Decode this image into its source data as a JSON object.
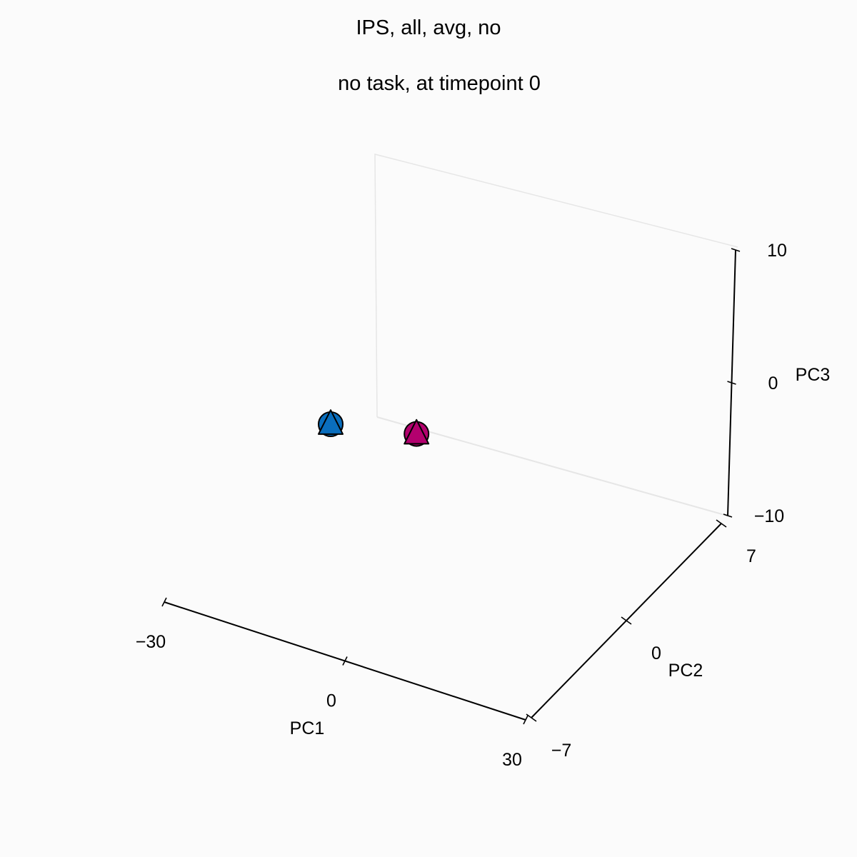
{
  "chart_data": {
    "type": "scatter",
    "projection": "3d",
    "title": "IPS, all, avg, no",
    "subtitle": "no task, at timepoint 0",
    "xlabel": "PC1",
    "ylabel": "PC2",
    "zlabel": "PC3",
    "xlim": [
      -30,
      30
    ],
    "ylim": [
      -7,
      7
    ],
    "zlim": [
      -10,
      10
    ],
    "xticks": [
      "−30",
      "0",
      "30"
    ],
    "yticks": [
      "−7",
      "0",
      "7"
    ],
    "zticks": [
      "−10",
      "0",
      "10"
    ],
    "grid": false,
    "series": [
      {
        "color": "#0a6ebd",
        "points": [
          {
            "x": 0,
            "y": 2,
            "z": 0
          }
        ],
        "markers": [
          "circle",
          "triangle"
        ]
      },
      {
        "color": "#b3006e",
        "points": [
          {
            "x": 12,
            "y": 3,
            "z": 0
          }
        ],
        "markers": [
          "circle",
          "triangle"
        ]
      }
    ]
  }
}
